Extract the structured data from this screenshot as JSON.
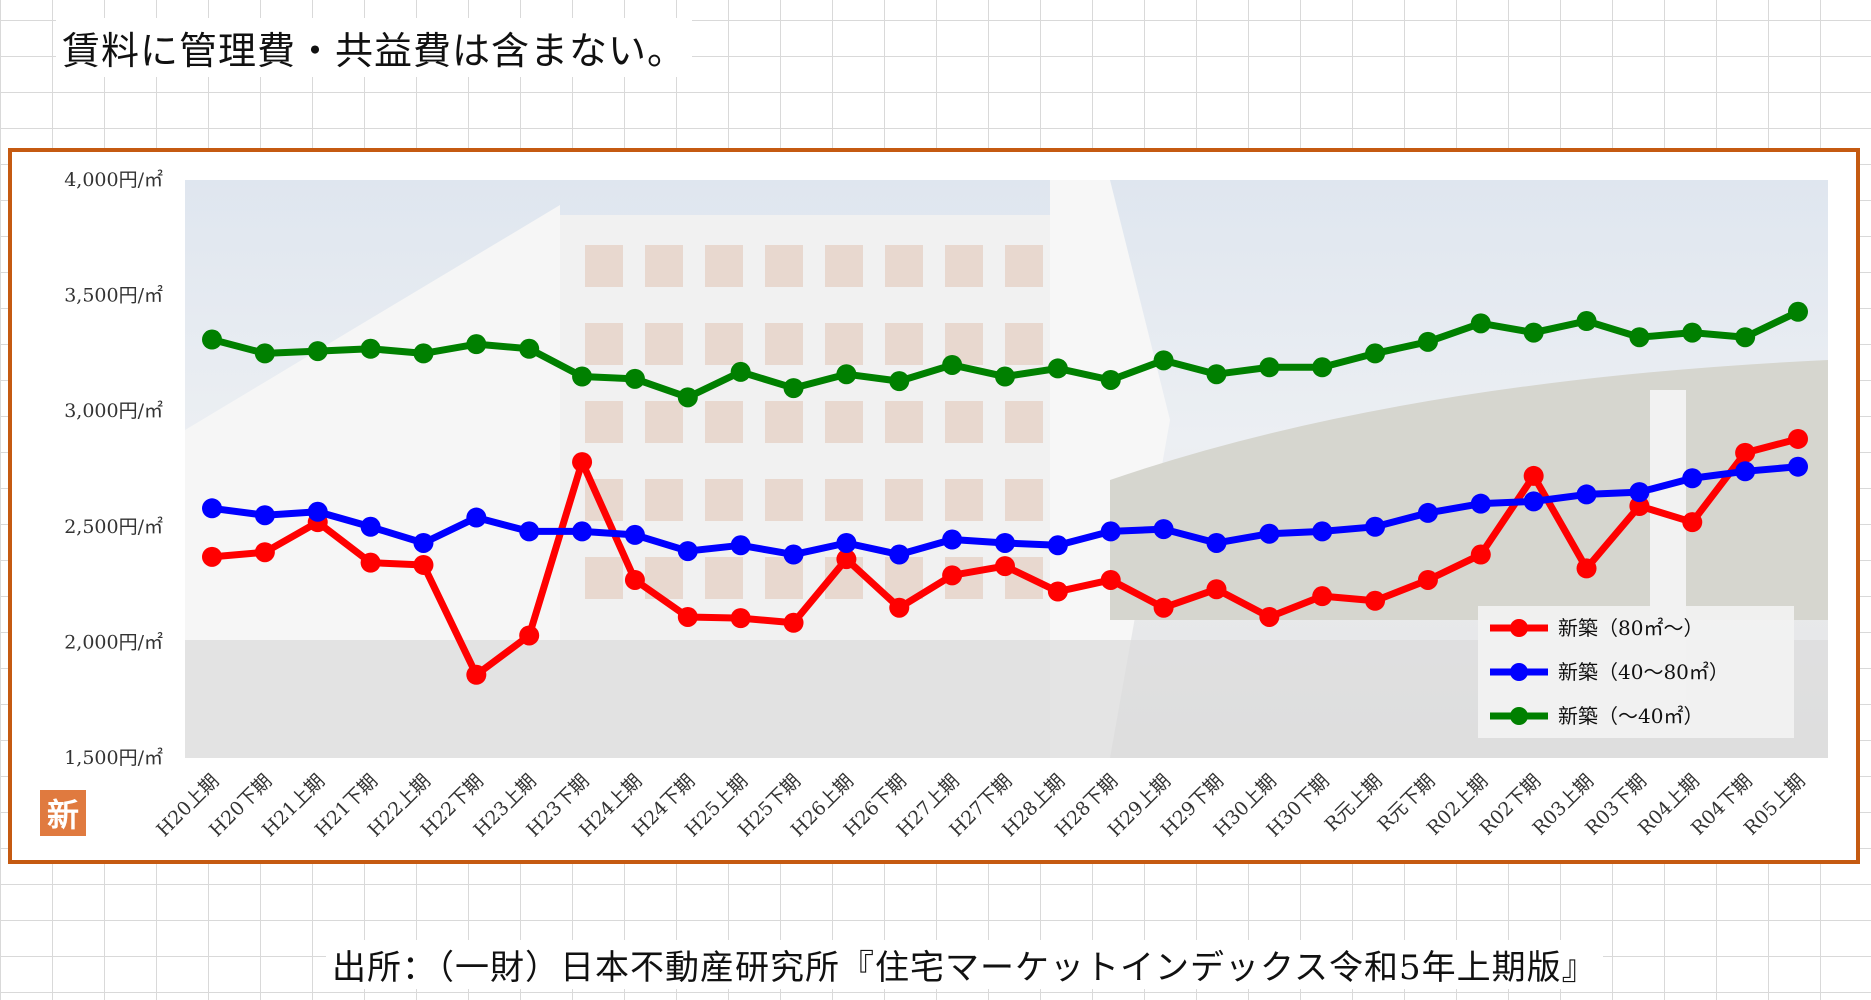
{
  "note": "賃料に管理費・共益費は含まない。",
  "source": "出所：（一財）日本不動産研究所『住宅マーケットインデックス令和5年上期版』",
  "logo_text": "新",
  "colors": {
    "frame": "#c55a11",
    "red": "#ff0000",
    "blue": "#0000ff",
    "green": "#008000"
  },
  "chart_data": {
    "type": "line",
    "title": "",
    "xlabel": "",
    "ylabel": "",
    "ylim": [
      1500,
      4000
    ],
    "y_ticks": [
      4000,
      3500,
      3000,
      2500,
      2000,
      1500
    ],
    "y_tick_labels": [
      "4,000円/㎡",
      "3,500円/㎡",
      "3,000円/㎡",
      "2,500円/㎡",
      "2,000円/㎡",
      "1,500円/㎡"
    ],
    "categories": [
      "H20上期",
      "H20下期",
      "H21上期",
      "H21下期",
      "H22上期",
      "H22下期",
      "H23上期",
      "H23下期",
      "H24上期",
      "H24下期",
      "H25上期",
      "H25下期",
      "H26上期",
      "H26下期",
      "H27上期",
      "H27下期",
      "H28上期",
      "H28下期",
      "H29上期",
      "H29下期",
      "H30上期",
      "H30下期",
      "R元上期",
      "R元下期",
      "R02上期",
      "R02下期",
      "R03上期",
      "R03下期",
      "R04上期",
      "R04下期",
      "R05上期"
    ],
    "legend_position": "bottom-right",
    "series": [
      {
        "name": "新築（80㎡～）",
        "color": "#ff0000",
        "values": [
          2370,
          2390,
          2520,
          2345,
          2335,
          1860,
          2030,
          2780,
          2270,
          2110,
          2105,
          2085,
          2360,
          2150,
          2290,
          2330,
          2220,
          2270,
          2150,
          2230,
          2110,
          2200,
          2180,
          2270,
          2380,
          2720,
          2320,
          2590,
          2520,
          2820,
          2880
        ]
      },
      {
        "name": "新築（40～80㎡）",
        "color": "#0000ff",
        "values": [
          2580,
          2550,
          2565,
          2500,
          2430,
          2540,
          2480,
          2480,
          2465,
          2395,
          2420,
          2380,
          2430,
          2380,
          2445,
          2430,
          2420,
          2480,
          2490,
          2430,
          2470,
          2480,
          2500,
          2560,
          2600,
          2610,
          2640,
          2650,
          2710,
          2740,
          2760
        ]
      },
      {
        "name": "新築（～40㎡）",
        "color": "#008000",
        "values": [
          3310,
          3250,
          3260,
          3270,
          3250,
          3290,
          3270,
          3150,
          3140,
          3060,
          3170,
          3100,
          3160,
          3130,
          3200,
          3150,
          3185,
          3135,
          3220,
          3160,
          3190,
          3190,
          3250,
          3300,
          3380,
          3340,
          3390,
          3320,
          3340,
          3320,
          3430
        ]
      }
    ]
  }
}
